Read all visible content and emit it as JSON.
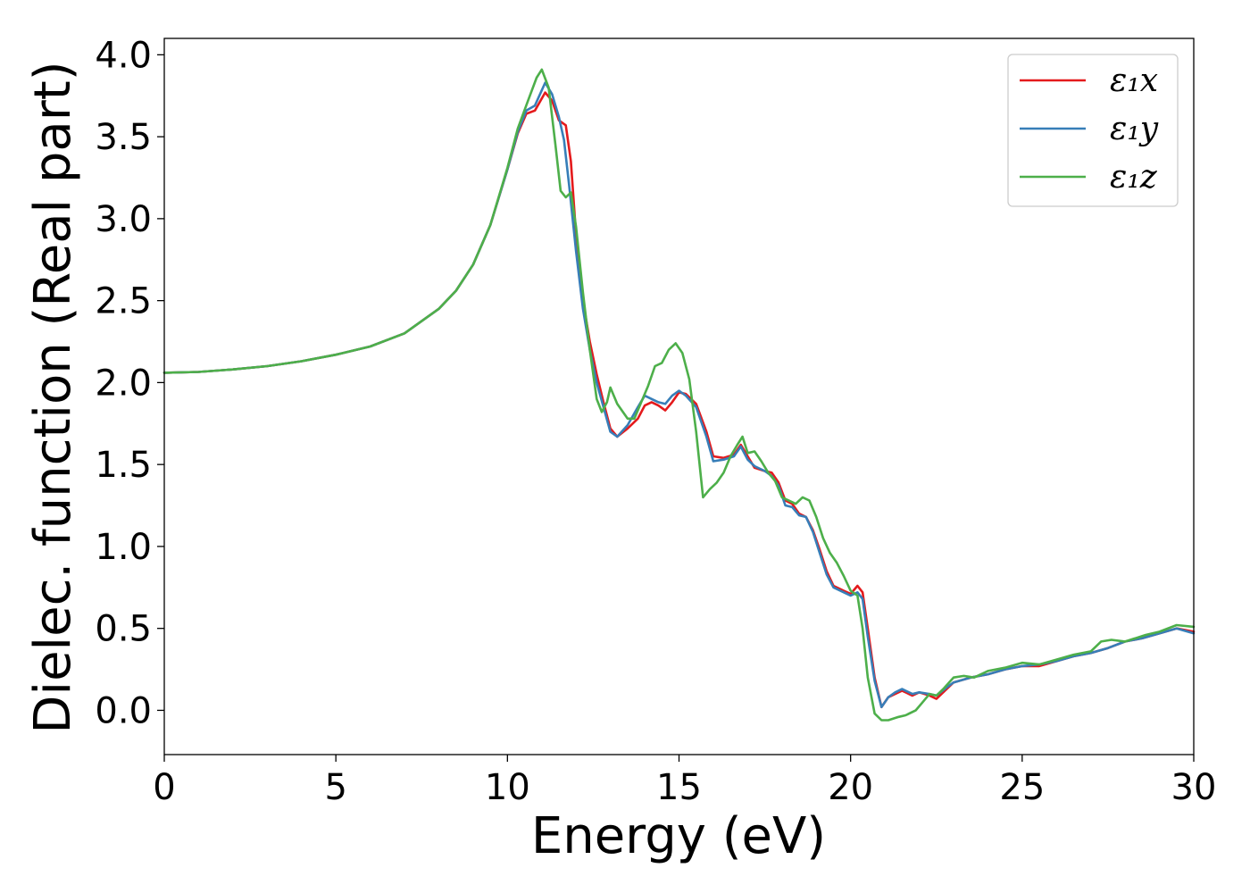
{
  "chart_data": {
    "type": "line",
    "xlabel": "Energy (eV)",
    "ylabel": "Dielec. function (Real part)",
    "xlim": [
      0,
      30
    ],
    "ylim": [
      -0.27,
      4.1
    ],
    "xticks": [
      0,
      5,
      10,
      15,
      20,
      25,
      30
    ],
    "yticks": [
      0.0,
      0.5,
      1.0,
      1.5,
      2.0,
      2.5,
      3.0,
      3.5,
      4.0
    ],
    "xtick_labels": [
      "0",
      "5",
      "10",
      "15",
      "20",
      "25",
      "30"
    ],
    "ytick_labels": [
      "0.0",
      "0.5",
      "1.0",
      "1.5",
      "2.0",
      "2.5",
      "3.0",
      "3.5",
      "4.0"
    ],
    "grid": false,
    "legend_position": "top-right",
    "series": [
      {
        "name": "ε₁x",
        "color": "#e41a1c",
        "points": [
          [
            0,
            2.06
          ],
          [
            1,
            2.065
          ],
          [
            2,
            2.08
          ],
          [
            3,
            2.1
          ],
          [
            4,
            2.13
          ],
          [
            5,
            2.17
          ],
          [
            6,
            2.22
          ],
          [
            7,
            2.3
          ],
          [
            8,
            2.45
          ],
          [
            8.5,
            2.56
          ],
          [
            9,
            2.72
          ],
          [
            9.5,
            2.96
          ],
          [
            10,
            3.3
          ],
          [
            10.3,
            3.52
          ],
          [
            10.55,
            3.64
          ],
          [
            10.8,
            3.66
          ],
          [
            11.1,
            3.77
          ],
          [
            11.3,
            3.72
          ],
          [
            11.5,
            3.6
          ],
          [
            11.7,
            3.57
          ],
          [
            11.85,
            3.35
          ],
          [
            12.0,
            2.9
          ],
          [
            12.2,
            2.5
          ],
          [
            12.4,
            2.25
          ],
          [
            12.6,
            2.05
          ],
          [
            12.8,
            1.88
          ],
          [
            13.0,
            1.72
          ],
          [
            13.2,
            1.67
          ],
          [
            13.5,
            1.72
          ],
          [
            13.8,
            1.78
          ],
          [
            14.0,
            1.86
          ],
          [
            14.2,
            1.88
          ],
          [
            14.4,
            1.86
          ],
          [
            14.6,
            1.83
          ],
          [
            14.8,
            1.88
          ],
          [
            15.0,
            1.94
          ],
          [
            15.2,
            1.93
          ],
          [
            15.5,
            1.87
          ],
          [
            15.8,
            1.7
          ],
          [
            16.0,
            1.55
          ],
          [
            16.3,
            1.54
          ],
          [
            16.6,
            1.56
          ],
          [
            16.8,
            1.62
          ],
          [
            17.0,
            1.55
          ],
          [
            17.2,
            1.48
          ],
          [
            17.5,
            1.46
          ],
          [
            17.7,
            1.45
          ],
          [
            17.9,
            1.39
          ],
          [
            18.1,
            1.28
          ],
          [
            18.3,
            1.26
          ],
          [
            18.5,
            1.2
          ],
          [
            18.7,
            1.18
          ],
          [
            18.9,
            1.1
          ],
          [
            19.1,
            0.98
          ],
          [
            19.3,
            0.85
          ],
          [
            19.5,
            0.76
          ],
          [
            19.8,
            0.73
          ],
          [
            20.0,
            0.71
          ],
          [
            20.2,
            0.76
          ],
          [
            20.35,
            0.72
          ],
          [
            20.5,
            0.5
          ],
          [
            20.7,
            0.2
          ],
          [
            20.9,
            0.02
          ],
          [
            21.1,
            0.08
          ],
          [
            21.3,
            0.1
          ],
          [
            21.5,
            0.12
          ],
          [
            21.8,
            0.09
          ],
          [
            22.0,
            0.11
          ],
          [
            22.3,
            0.09
          ],
          [
            22.5,
            0.07
          ],
          [
            22.8,
            0.13
          ],
          [
            23.0,
            0.17
          ],
          [
            23.5,
            0.2
          ],
          [
            24.0,
            0.22
          ],
          [
            24.5,
            0.25
          ],
          [
            25.0,
            0.27
          ],
          [
            25.5,
            0.27
          ],
          [
            26.0,
            0.3
          ],
          [
            26.5,
            0.33
          ],
          [
            27.0,
            0.35
          ],
          [
            27.5,
            0.38
          ],
          [
            28.0,
            0.42
          ],
          [
            28.5,
            0.44
          ],
          [
            29.0,
            0.47
          ],
          [
            29.5,
            0.5
          ],
          [
            30.0,
            0.48
          ]
        ]
      },
      {
        "name": "ε₁y",
        "color": "#377eb8",
        "points": [
          [
            0,
            2.06
          ],
          [
            1,
            2.065
          ],
          [
            2,
            2.08
          ],
          [
            3,
            2.1
          ],
          [
            4,
            2.13
          ],
          [
            5,
            2.17
          ],
          [
            6,
            2.22
          ],
          [
            7,
            2.3
          ],
          [
            8,
            2.45
          ],
          [
            8.5,
            2.56
          ],
          [
            9,
            2.72
          ],
          [
            9.5,
            2.96
          ],
          [
            10,
            3.3
          ],
          [
            10.3,
            3.53
          ],
          [
            10.55,
            3.66
          ],
          [
            10.8,
            3.69
          ],
          [
            11.1,
            3.83
          ],
          [
            11.3,
            3.76
          ],
          [
            11.5,
            3.62
          ],
          [
            11.65,
            3.48
          ],
          [
            11.8,
            3.2
          ],
          [
            12.0,
            2.8
          ],
          [
            12.2,
            2.45
          ],
          [
            12.4,
            2.2
          ],
          [
            12.6,
            2.0
          ],
          [
            12.8,
            1.85
          ],
          [
            13.0,
            1.7
          ],
          [
            13.2,
            1.67
          ],
          [
            13.5,
            1.74
          ],
          [
            13.8,
            1.85
          ],
          [
            14.0,
            1.92
          ],
          [
            14.2,
            1.9
          ],
          [
            14.4,
            1.88
          ],
          [
            14.6,
            1.87
          ],
          [
            14.8,
            1.92
          ],
          [
            15.0,
            1.95
          ],
          [
            15.2,
            1.92
          ],
          [
            15.5,
            1.85
          ],
          [
            15.8,
            1.67
          ],
          [
            16.0,
            1.52
          ],
          [
            16.3,
            1.53
          ],
          [
            16.6,
            1.55
          ],
          [
            16.8,
            1.61
          ],
          [
            17.0,
            1.53
          ],
          [
            17.2,
            1.49
          ],
          [
            17.5,
            1.46
          ],
          [
            17.7,
            1.43
          ],
          [
            17.9,
            1.37
          ],
          [
            18.1,
            1.25
          ],
          [
            18.3,
            1.24
          ],
          [
            18.5,
            1.19
          ],
          [
            18.7,
            1.18
          ],
          [
            18.9,
            1.09
          ],
          [
            19.1,
            0.96
          ],
          [
            19.3,
            0.83
          ],
          [
            19.5,
            0.75
          ],
          [
            19.8,
            0.72
          ],
          [
            20.0,
            0.7
          ],
          [
            20.2,
            0.72
          ],
          [
            20.35,
            0.68
          ],
          [
            20.5,
            0.45
          ],
          [
            20.7,
            0.18
          ],
          [
            20.9,
            0.02
          ],
          [
            21.1,
            0.08
          ],
          [
            21.3,
            0.11
          ],
          [
            21.5,
            0.13
          ],
          [
            21.8,
            0.1
          ],
          [
            22.0,
            0.11
          ],
          [
            22.3,
            0.1
          ],
          [
            22.5,
            0.09
          ],
          [
            22.8,
            0.14
          ],
          [
            23.0,
            0.17
          ],
          [
            23.5,
            0.2
          ],
          [
            24.0,
            0.22
          ],
          [
            24.5,
            0.25
          ],
          [
            25.0,
            0.27
          ],
          [
            25.5,
            0.28
          ],
          [
            26.0,
            0.3
          ],
          [
            26.5,
            0.33
          ],
          [
            27.0,
            0.35
          ],
          [
            27.5,
            0.38
          ],
          [
            28.0,
            0.42
          ],
          [
            28.5,
            0.44
          ],
          [
            29.0,
            0.47
          ],
          [
            29.5,
            0.5
          ],
          [
            30.0,
            0.47
          ]
        ]
      },
      {
        "name": "ε₁z",
        "color": "#4daf4a",
        "points": [
          [
            0,
            2.06
          ],
          [
            1,
            2.065
          ],
          [
            2,
            2.08
          ],
          [
            3,
            2.1
          ],
          [
            4,
            2.13
          ],
          [
            5,
            2.17
          ],
          [
            6,
            2.22
          ],
          [
            7,
            2.3
          ],
          [
            8,
            2.45
          ],
          [
            8.5,
            2.56
          ],
          [
            9,
            2.72
          ],
          [
            9.5,
            2.96
          ],
          [
            10,
            3.31
          ],
          [
            10.3,
            3.55
          ],
          [
            10.6,
            3.72
          ],
          [
            10.85,
            3.86
          ],
          [
            11.0,
            3.91
          ],
          [
            11.2,
            3.8
          ],
          [
            11.4,
            3.45
          ],
          [
            11.55,
            3.17
          ],
          [
            11.7,
            3.13
          ],
          [
            11.85,
            3.16
          ],
          [
            12.0,
            2.95
          ],
          [
            12.2,
            2.55
          ],
          [
            12.4,
            2.2
          ],
          [
            12.6,
            1.9
          ],
          [
            12.75,
            1.82
          ],
          [
            12.9,
            1.88
          ],
          [
            13.0,
            1.97
          ],
          [
            13.2,
            1.87
          ],
          [
            13.5,
            1.78
          ],
          [
            13.7,
            1.78
          ],
          [
            13.9,
            1.88
          ],
          [
            14.1,
            1.98
          ],
          [
            14.3,
            2.1
          ],
          [
            14.5,
            2.12
          ],
          [
            14.7,
            2.2
          ],
          [
            14.9,
            2.24
          ],
          [
            15.1,
            2.18
          ],
          [
            15.3,
            2.02
          ],
          [
            15.5,
            1.7
          ],
          [
            15.7,
            1.3
          ],
          [
            15.9,
            1.35
          ],
          [
            16.1,
            1.39
          ],
          [
            16.3,
            1.45
          ],
          [
            16.5,
            1.55
          ],
          [
            16.7,
            1.62
          ],
          [
            16.85,
            1.67
          ],
          [
            17.0,
            1.57
          ],
          [
            17.2,
            1.58
          ],
          [
            17.4,
            1.52
          ],
          [
            17.6,
            1.45
          ],
          [
            17.8,
            1.4
          ],
          [
            18.0,
            1.3
          ],
          [
            18.2,
            1.28
          ],
          [
            18.4,
            1.26
          ],
          [
            18.6,
            1.3
          ],
          [
            18.8,
            1.28
          ],
          [
            19.0,
            1.18
          ],
          [
            19.2,
            1.05
          ],
          [
            19.4,
            0.96
          ],
          [
            19.6,
            0.9
          ],
          [
            19.8,
            0.82
          ],
          [
            20.0,
            0.73
          ],
          [
            20.2,
            0.7
          ],
          [
            20.35,
            0.5
          ],
          [
            20.5,
            0.2
          ],
          [
            20.7,
            -0.02
          ],
          [
            20.9,
            -0.06
          ],
          [
            21.1,
            -0.06
          ],
          [
            21.4,
            -0.04
          ],
          [
            21.6,
            -0.03
          ],
          [
            21.9,
            0.0
          ],
          [
            22.1,
            0.05
          ],
          [
            22.3,
            0.1
          ],
          [
            22.5,
            0.09
          ],
          [
            22.7,
            0.13
          ],
          [
            23.0,
            0.2
          ],
          [
            23.3,
            0.21
          ],
          [
            23.6,
            0.2
          ],
          [
            24.0,
            0.24
          ],
          [
            24.5,
            0.26
          ],
          [
            25.0,
            0.29
          ],
          [
            25.5,
            0.28
          ],
          [
            26.0,
            0.31
          ],
          [
            26.5,
            0.34
          ],
          [
            27.0,
            0.36
          ],
          [
            27.3,
            0.42
          ],
          [
            27.6,
            0.43
          ],
          [
            28.0,
            0.42
          ],
          [
            28.3,
            0.44
          ],
          [
            28.6,
            0.46
          ],
          [
            29.0,
            0.48
          ],
          [
            29.5,
            0.52
          ],
          [
            30.0,
            0.51
          ]
        ]
      }
    ]
  }
}
